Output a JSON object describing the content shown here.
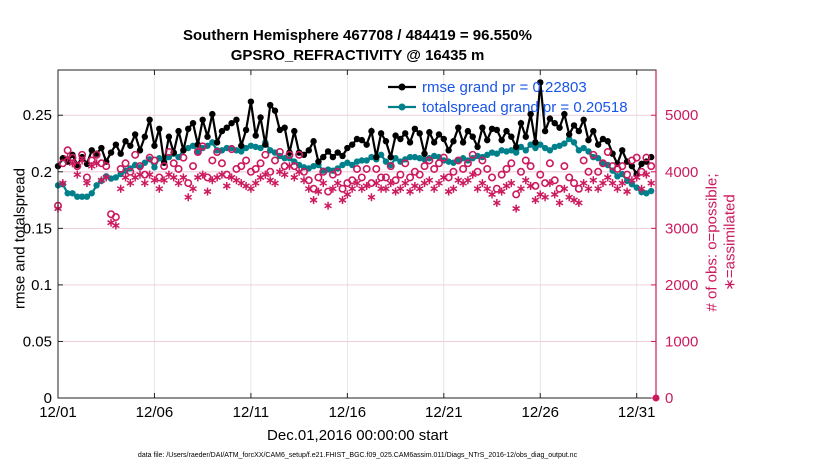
{
  "title_line1": "Southern Hemisphere 467708 / 484419 = 96.550%",
  "title_line2": "GPSRO_REFRACTIVITY @ 16435 m",
  "x_label": "Dec.01,2016 00:00:00 start",
  "y_label_left": "rmse and totalspread",
  "y_label_right": "# of obs: o=possible; ∗=assimilated",
  "footnote": "data file: /Users/raeder/DAI/ATM_forcXX/CAM6_setup/f.e21.FHIST_BGC.f09_025.CAM6assim.011/Diags_NTrS_2016-12/obs_diag_output.nc",
  "colors": {
    "rmse": "#000000",
    "spread": "#00808a",
    "obs": "#cc1a5e"
  },
  "chart_data": {
    "type": "line",
    "x_unit": "day of Dec 2016",
    "xlim": [
      1,
      32
    ],
    "x_ticks": [
      1,
      6,
      11,
      16,
      21,
      26,
      31
    ],
    "x_tick_labels": [
      "12/01",
      "12/06",
      "12/11",
      "12/16",
      "12/21",
      "12/26",
      "12/31"
    ],
    "ylim_left": [
      0,
      0.29
    ],
    "yticks_left": [
      0,
      0.05,
      0.1,
      0.15,
      0.2,
      0.25
    ],
    "ytick_labels_left": [
      "0",
      "0.05",
      "0.1",
      "0.15",
      "0.2",
      "0.25"
    ],
    "ylim_right": [
      0,
      5800
    ],
    "yticks_right": [
      0,
      1000,
      2000,
      3000,
      4000,
      5000
    ],
    "ytick_labels_right": [
      "0",
      "1000",
      "2000",
      "3000",
      "4000",
      "5000"
    ],
    "grid": true,
    "legend_position": "top-right",
    "series": [
      {
        "name": "rmse grand pr = 0.22803",
        "axis": "left",
        "color": "#000000",
        "marker": "dot",
        "x": [
          1,
          1.25,
          1.5,
          1.75,
          2,
          2.25,
          2.5,
          2.75,
          3,
          3.25,
          3.5,
          3.75,
          4,
          4.25,
          4.5,
          4.75,
          5,
          5.25,
          5.5,
          5.75,
          6,
          6.25,
          6.5,
          6.75,
          7,
          7.25,
          7.5,
          7.75,
          8,
          8.25,
          8.5,
          8.75,
          9,
          9.25,
          9.5,
          9.75,
          10,
          10.25,
          10.5,
          10.75,
          11,
          11.25,
          11.5,
          11.75,
          12,
          12.25,
          12.5,
          12.75,
          13,
          13.25,
          13.5,
          13.75,
          14,
          14.25,
          14.5,
          14.75,
          15,
          15.25,
          15.5,
          15.75,
          16,
          16.25,
          16.5,
          16.75,
          17,
          17.25,
          17.5,
          17.75,
          18,
          18.25,
          18.5,
          18.75,
          19,
          19.25,
          19.5,
          19.75,
          20,
          20.25,
          20.5,
          20.75,
          21,
          21.25,
          21.5,
          21.75,
          22,
          22.25,
          22.5,
          22.75,
          23,
          23.25,
          23.5,
          23.75,
          24,
          24.25,
          24.5,
          24.75,
          25,
          25.25,
          25.5,
          25.75,
          26,
          26.25,
          26.5,
          26.75,
          27,
          27.25,
          27.5,
          27.75,
          28,
          28.25,
          28.5,
          28.75,
          29,
          29.25,
          29.5,
          29.75,
          30,
          30.25,
          30.5,
          30.75,
          31,
          31.25,
          31.5,
          31.75
        ],
        "y": [
          0.205,
          0.212,
          0.209,
          0.215,
          0.206,
          0.213,
          0.207,
          0.219,
          0.216,
          0.221,
          0.209,
          0.217,
          0.224,
          0.216,
          0.227,
          0.223,
          0.233,
          0.219,
          0.231,
          0.246,
          0.223,
          0.238,
          0.208,
          0.231,
          0.217,
          0.236,
          0.219,
          0.238,
          0.243,
          0.224,
          0.246,
          0.231,
          0.251,
          0.226,
          0.236,
          0.239,
          0.243,
          0.246,
          0.223,
          0.237,
          0.262,
          0.232,
          0.248,
          0.224,
          0.259,
          0.254,
          0.237,
          0.239,
          0.217,
          0.236,
          0.217,
          0.215,
          0.219,
          0.227,
          0.209,
          0.213,
          0.218,
          0.213,
          0.217,
          0.214,
          0.221,
          0.224,
          0.229,
          0.228,
          0.224,
          0.236,
          0.213,
          0.234,
          0.227,
          0.213,
          0.232,
          0.229,
          0.234,
          0.226,
          0.238,
          0.234,
          0.216,
          0.235,
          0.226,
          0.233,
          0.229,
          0.219,
          0.227,
          0.239,
          0.226,
          0.236,
          0.231,
          0.222,
          0.239,
          0.228,
          0.238,
          0.237,
          0.228,
          0.236,
          0.231,
          0.222,
          0.243,
          0.231,
          0.251,
          0.226,
          0.279,
          0.236,
          0.247,
          0.243,
          0.239,
          0.251,
          0.233,
          0.241,
          0.236,
          0.246,
          0.228,
          0.236,
          0.224,
          0.229,
          0.227,
          0.216,
          0.207,
          0.219,
          0.209,
          0.205,
          0.198,
          0.207,
          0.209,
          0.213
        ]
      },
      {
        "name": "totalspread grand pr = 0.20518",
        "axis": "left",
        "color": "#00808a",
        "marker": "dot",
        "x": [
          1,
          1.25,
          1.5,
          1.75,
          2,
          2.25,
          2.5,
          2.75,
          3,
          3.25,
          3.5,
          3.75,
          4,
          4.25,
          4.5,
          4.75,
          5,
          5.25,
          5.5,
          5.75,
          6,
          6.25,
          6.5,
          6.75,
          7,
          7.25,
          7.5,
          7.75,
          8,
          8.25,
          8.5,
          8.75,
          9,
          9.25,
          9.5,
          9.75,
          10,
          10.25,
          10.5,
          10.75,
          11,
          11.25,
          11.5,
          11.75,
          12,
          12.25,
          12.5,
          12.75,
          13,
          13.25,
          13.5,
          13.75,
          14,
          14.25,
          14.5,
          14.75,
          15,
          15.25,
          15.5,
          15.75,
          16,
          16.25,
          16.5,
          16.75,
          17,
          17.25,
          17.5,
          17.75,
          18,
          18.25,
          18.5,
          18.75,
          19,
          19.25,
          19.5,
          19.75,
          20,
          20.25,
          20.5,
          20.75,
          21,
          21.25,
          21.5,
          21.75,
          22,
          22.25,
          22.5,
          22.75,
          23,
          23.25,
          23.5,
          23.75,
          24,
          24.25,
          24.5,
          24.75,
          25,
          25.25,
          25.5,
          25.75,
          26,
          26.25,
          26.5,
          26.75,
          27,
          27.25,
          27.5,
          27.75,
          28,
          28.25,
          28.5,
          28.75,
          29,
          29.25,
          29.5,
          29.75,
          30,
          30.25,
          30.5,
          30.75,
          31,
          31.25,
          31.5,
          31.75
        ],
        "y": [
          0.188,
          0.189,
          0.181,
          0.181,
          0.178,
          0.178,
          0.178,
          0.181,
          0.188,
          0.192,
          0.196,
          0.194,
          0.195,
          0.198,
          0.201,
          0.203,
          0.206,
          0.204,
          0.208,
          0.211,
          0.204,
          0.212,
          0.209,
          0.213,
          0.216,
          0.213,
          0.219,
          0.221,
          0.223,
          0.218,
          0.221,
          0.223,
          0.226,
          0.219,
          0.219,
          0.221,
          0.221,
          0.219,
          0.218,
          0.221,
          0.223,
          0.222,
          0.221,
          0.226,
          0.219,
          0.217,
          0.214,
          0.212,
          0.212,
          0.209,
          0.206,
          0.204,
          0.203,
          0.205,
          0.206,
          0.201,
          0.202,
          0.201,
          0.203,
          0.206,
          0.208,
          0.206,
          0.209,
          0.21,
          0.21,
          0.213,
          0.211,
          0.215,
          0.209,
          0.206,
          0.212,
          0.209,
          0.211,
          0.213,
          0.213,
          0.212,
          0.211,
          0.212,
          0.214,
          0.213,
          0.21,
          0.209,
          0.208,
          0.21,
          0.212,
          0.21,
          0.212,
          0.214,
          0.213,
          0.215,
          0.217,
          0.216,
          0.219,
          0.218,
          0.219,
          0.217,
          0.222,
          0.219,
          0.224,
          0.221,
          0.224,
          0.221,
          0.219,
          0.222,
          0.223,
          0.225,
          0.229,
          0.226,
          0.219,
          0.221,
          0.218,
          0.213,
          0.212,
          0.208,
          0.206,
          0.201,
          0.196,
          0.198,
          0.192,
          0.189,
          0.186,
          0.182,
          0.181,
          0.183
        ]
      },
      {
        "name": "possible",
        "axis": "right",
        "color": "#cc1a5e",
        "marker": "circle",
        "x": [
          1,
          1.25,
          1.5,
          1.75,
          2,
          2.25,
          2.5,
          2.75,
          3,
          3.25,
          3.5,
          3.75,
          4,
          4.25,
          4.5,
          4.75,
          5,
          5.25,
          5.5,
          5.75,
          6,
          6.25,
          6.5,
          6.75,
          7,
          7.25,
          7.5,
          7.75,
          8,
          8.25,
          8.5,
          8.75,
          9,
          9.25,
          9.5,
          9.75,
          10,
          10.25,
          10.5,
          10.75,
          11,
          11.25,
          11.5,
          11.75,
          12,
          12.25,
          12.5,
          12.75,
          13,
          13.25,
          13.5,
          13.75,
          14,
          14.25,
          14.5,
          14.75,
          15,
          15.25,
          15.5,
          15.75,
          16,
          16.25,
          16.5,
          16.75,
          17,
          17.25,
          17.5,
          17.75,
          18,
          18.25,
          18.5,
          18.75,
          19,
          19.25,
          19.5,
          19.75,
          20,
          20.25,
          20.5,
          20.75,
          21,
          21.25,
          21.5,
          21.75,
          22,
          22.25,
          22.5,
          22.75,
          23,
          23.25,
          23.5,
          23.75,
          24,
          24.25,
          24.5,
          24.75,
          25,
          25.25,
          25.5,
          25.75,
          26,
          26.25,
          26.5,
          26.75,
          27,
          27.25,
          27.5,
          27.75,
          28,
          28.25,
          28.5,
          28.75,
          29,
          29.25,
          29.5,
          29.75,
          30,
          30.25,
          30.5,
          30.75,
          31,
          31.25,
          31.5,
          31.75
        ],
        "y": [
          3400,
          4150,
          4380,
          4250,
          4100,
          4300,
          3900,
          4200,
          4300,
          4150,
          4100,
          3250,
          3200,
          4050,
          4150,
          4000,
          4300,
          4100,
          3950,
          4250,
          4200,
          3900,
          4100,
          4350,
          4150,
          4050,
          4250,
          3800,
          4100,
          4350,
          4450,
          3900,
          4200,
          4350,
          4150,
          3950,
          4400,
          4050,
          4100,
          4200,
          4000,
          4050,
          4150,
          4300,
          4000,
          4200,
          4350,
          4100,
          4300,
          4100,
          4300,
          4000,
          3850,
          3700,
          3900,
          4000,
          3650,
          3950,
          4000,
          3700,
          3800,
          3850,
          4050,
          3900,
          4050,
          3800,
          4050,
          3900,
          3900,
          4100,
          3850,
          3950,
          4150,
          3900,
          4000,
          3950,
          4100,
          4200,
          4050,
          4150,
          4250,
          3900,
          4000,
          4200,
          4050,
          4150,
          4300,
          4000,
          4200,
          4050,
          3900,
          3700,
          3950,
          4050,
          4150,
          3600,
          4000,
          4200,
          4100,
          3750,
          3950,
          3800,
          4150,
          3850,
          3700,
          4100,
          3900,
          3800,
          3700,
          4200,
          4000,
          4300,
          4000,
          4150,
          4350,
          4100,
          4050,
          4100,
          3950,
          4200,
          4250,
          4000,
          4250,
          4100
        ]
      },
      {
        "name": "assimilated",
        "axis": "right",
        "color": "#cc1a5e",
        "marker": "asterisk",
        "x": [
          1,
          1.25,
          1.5,
          1.75,
          2,
          2.25,
          2.5,
          2.75,
          3,
          3.25,
          3.5,
          3.75,
          4,
          4.25,
          4.5,
          4.75,
          5,
          5.25,
          5.5,
          5.75,
          6,
          6.25,
          6.5,
          6.75,
          7,
          7.25,
          7.5,
          7.75,
          8,
          8.25,
          8.5,
          8.75,
          9,
          9.25,
          9.5,
          9.75,
          10,
          10.25,
          10.5,
          10.75,
          11,
          11.25,
          11.5,
          11.75,
          12,
          12.25,
          12.5,
          12.75,
          13,
          13.25,
          13.5,
          13.75,
          14,
          14.25,
          14.5,
          14.75,
          15,
          15.25,
          15.5,
          15.75,
          16,
          16.25,
          16.5,
          16.75,
          17,
          17.25,
          17.5,
          17.75,
          18,
          18.25,
          18.5,
          18.75,
          19,
          19.25,
          19.5,
          19.75,
          20,
          20.25,
          20.5,
          20.75,
          21,
          21.25,
          21.5,
          21.75,
          22,
          22.25,
          22.5,
          22.75,
          23,
          23.25,
          23.5,
          23.75,
          24,
          24.25,
          24.5,
          24.75,
          25,
          25.25,
          25.5,
          25.75,
          26,
          26.25,
          26.5,
          26.75,
          27,
          27.25,
          27.5,
          27.75,
          28,
          28.25,
          28.5,
          28.75,
          29,
          29.25,
          29.5,
          29.75,
          30,
          30.25,
          30.5,
          30.75,
          31,
          31.25,
          31.5,
          31.75
        ],
        "y": [
          3350,
          3800,
          4250,
          4150,
          3950,
          4200,
          3800,
          4100,
          4150,
          3850,
          3900,
          3100,
          3050,
          3700,
          3900,
          3800,
          3900,
          3950,
          3800,
          3950,
          3850,
          3700,
          3850,
          3950,
          3900,
          3800,
          3900,
          3550,
          3700,
          3900,
          3950,
          3650,
          3850,
          3900,
          3950,
          3750,
          3900,
          3850,
          3800,
          3750,
          3700,
          3800,
          3900,
          3950,
          3850,
          3800,
          4000,
          3950,
          4100,
          3900,
          4000,
          3850,
          3700,
          3500,
          3650,
          3800,
          3400,
          3700,
          3800,
          3500,
          3600,
          3700,
          3800,
          3700,
          3750,
          3550,
          3800,
          3700,
          3700,
          3800,
          3650,
          3700,
          3800,
          3650,
          3750,
          3700,
          3800,
          3850,
          3700,
          3800,
          3900,
          3650,
          3700,
          3850,
          3800,
          3850,
          3950,
          3700,
          3800,
          3700,
          3600,
          3450,
          3650,
          3750,
          3800,
          3350,
          3700,
          3850,
          3750,
          3500,
          3600,
          3550,
          3800,
          3600,
          3450,
          3700,
          3550,
          3500,
          3450,
          3800,
          3700,
          3850,
          3700,
          3800,
          3900,
          3800,
          3700,
          3800,
          3650,
          3850,
          3900,
          3700,
          3950,
          3800
        ]
      }
    ]
  }
}
